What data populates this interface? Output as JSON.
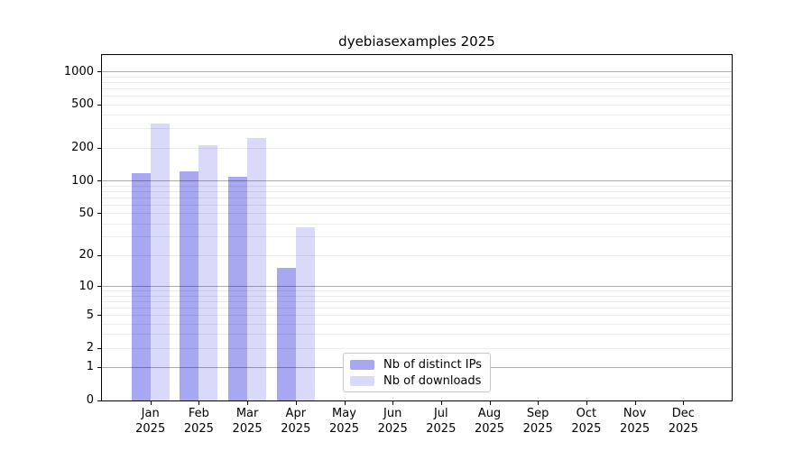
{
  "chart_data": {
    "type": "bar",
    "title": "dyebiasexamples 2025",
    "categories": [
      "Jan 2025",
      "Feb 2025",
      "Mar 2025",
      "Apr 2025",
      "May 2025",
      "Jun 2025",
      "Jul 2025",
      "Aug 2025",
      "Sep 2025",
      "Oct 2025",
      "Nov 2025",
      "Dec 2025"
    ],
    "series": [
      {
        "name": "Nb of distinct IPs",
        "color": "#a7a7f2",
        "values": [
          117,
          122,
          109,
          15,
          null,
          null,
          null,
          null,
          null,
          null,
          null,
          null
        ]
      },
      {
        "name": "Nb of downloads",
        "color": "#d9d9fa",
        "values": [
          335,
          210,
          245,
          37,
          null,
          null,
          null,
          null,
          null,
          null,
          null,
          null
        ]
      }
    ],
    "y_ticks": [
      0,
      1,
      2,
      5,
      10,
      20,
      50,
      100,
      200,
      500,
      1000
    ],
    "y_scale": "log10(1+x)",
    "ylim": [
      0,
      1400
    ],
    "xlabel": "",
    "ylabel": "",
    "grid": true,
    "grid_major_at": [
      1,
      10,
      100,
      1000
    ],
    "legend_position": "bottom-center"
  },
  "colors": {
    "bar_distinct_ips": "#a7a7f2",
    "bar_downloads": "#d9d9fa",
    "plot_frame": "#000000",
    "grid_major": "#adadad",
    "grid_minor": "#ececec",
    "legend_border": "#c9c9c9",
    "background": "#ffffff"
  }
}
